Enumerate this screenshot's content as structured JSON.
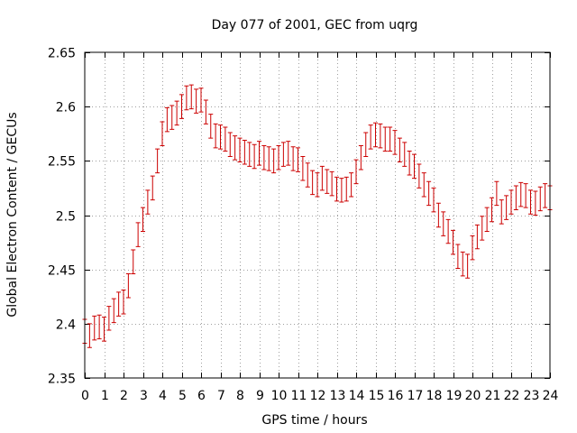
{
  "chart_data": {
    "type": "scatter",
    "title": "Day 077 of 2001, GEC from uqrg",
    "xlabel": "GPS time / hours",
    "ylabel": "Global Electron Content / GECUs",
    "xlim": [
      0,
      24
    ],
    "ylim": [
      2.35,
      2.65
    ],
    "xticks": [
      "0",
      "1",
      "2",
      "3",
      "4",
      "5",
      "6",
      "7",
      "8",
      "9",
      "10",
      "11",
      "12",
      "13",
      "14",
      "15",
      "16",
      "17",
      "18",
      "19",
      "20",
      "21",
      "22",
      "23",
      "24"
    ],
    "yticks": [
      "2.35",
      "2.4",
      "2.45",
      "2.5",
      "2.55",
      "2.6",
      "2.65"
    ],
    "grid": true,
    "error_bar": 0.011,
    "series": [
      {
        "color": "#cc0000",
        "marker": "error-bar",
        "x": [
          0,
          0.25,
          0.5,
          0.75,
          1,
          1.25,
          1.5,
          1.75,
          2,
          2.25,
          2.5,
          2.75,
          3,
          3.25,
          3.5,
          3.75,
          4,
          4.25,
          4.5,
          4.75,
          5,
          5.25,
          5.5,
          5.75,
          6,
          6.25,
          6.5,
          6.75,
          7,
          7.25,
          7.5,
          7.75,
          8,
          8.25,
          8.5,
          8.75,
          9,
          9.25,
          9.5,
          9.75,
          10,
          10.25,
          10.5,
          10.75,
          11,
          11.25,
          11.5,
          11.75,
          12,
          12.25,
          12.5,
          12.75,
          13,
          13.25,
          13.5,
          13.75,
          14,
          14.25,
          14.5,
          14.75,
          15,
          15.25,
          15.5,
          15.75,
          16,
          16.25,
          16.5,
          16.75,
          17,
          17.25,
          17.5,
          17.75,
          18,
          18.25,
          18.5,
          18.75,
          19,
          19.25,
          19.5,
          19.75,
          20,
          20.25,
          20.5,
          20.75,
          21,
          21.25,
          21.5,
          21.75,
          22,
          22.25,
          22.5,
          22.75,
          23,
          23.25,
          23.5,
          23.75,
          24
        ],
        "y": [
          2.393,
          2.389,
          2.396,
          2.397,
          2.395,
          2.405,
          2.412,
          2.418,
          2.42,
          2.435,
          2.457,
          2.482,
          2.496,
          2.512,
          2.525,
          2.55,
          2.575,
          2.588,
          2.59,
          2.594,
          2.6,
          2.608,
          2.609,
          2.605,
          2.606,
          2.595,
          2.582,
          2.573,
          2.572,
          2.57,
          2.565,
          2.562,
          2.56,
          2.558,
          2.556,
          2.554,
          2.557,
          2.553,
          2.552,
          2.55,
          2.553,
          2.556,
          2.557,
          2.552,
          2.551,
          2.543,
          2.537,
          2.53,
          2.528,
          2.534,
          2.531,
          2.529,
          2.524,
          2.523,
          2.524,
          2.528,
          2.54,
          2.553,
          2.565,
          2.572,
          2.574,
          2.573,
          2.57,
          2.57,
          2.567,
          2.56,
          2.556,
          2.548,
          2.545,
          2.536,
          2.528,
          2.52,
          2.514,
          2.5,
          2.492,
          2.485,
          2.475,
          2.462,
          2.455,
          2.453,
          2.47,
          2.48,
          2.488,
          2.496,
          2.505,
          2.52,
          2.503,
          2.507,
          2.512,
          2.516,
          2.519,
          2.518,
          2.512,
          2.511,
          2.515,
          2.518,
          2.516
        ]
      }
    ]
  }
}
